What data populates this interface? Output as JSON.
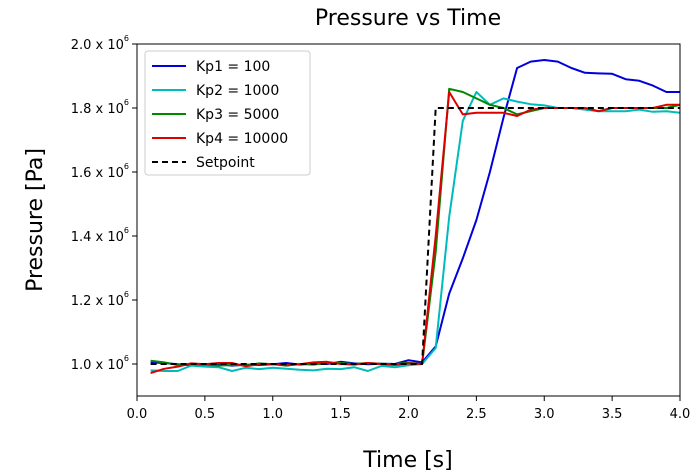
{
  "chart_data": {
    "type": "line",
    "title": "Pressure vs Time",
    "xlabel": "Time [s]",
    "ylabel": "Pressure [Pa]",
    "xlim": [
      0.0,
      4.0
    ],
    "ylim": [
      900000,
      2000000
    ],
    "x_ticks": [
      0.0,
      0.5,
      1.0,
      1.5,
      2.0,
      2.5,
      3.0,
      3.5,
      4.0
    ],
    "x_tick_labels": [
      "0.0",
      "0.5",
      "1.0",
      "1.5",
      "2.0",
      "2.5",
      "3.0",
      "3.5",
      "4.0"
    ],
    "y_ticks": [
      1000000,
      1200000,
      1400000,
      1600000,
      1800000,
      2000000
    ],
    "y_tick_labels": [
      {
        "base": "1.0 x 10",
        "exp": "6"
      },
      {
        "base": "1.2 x 10",
        "exp": "6"
      },
      {
        "base": "1.4 x 10",
        "exp": "6"
      },
      {
        "base": "1.6 x 10",
        "exp": "6"
      },
      {
        "base": "1.8 x 10",
        "exp": "6"
      },
      {
        "base": "2.0 x 10",
        "exp": "6"
      }
    ],
    "legend_position": "top-left",
    "grid": false,
    "series": [
      {
        "name": "Kp1 = 100",
        "color": "#0000dd",
        "style": "solid",
        "x": [
          0.1,
          0.2,
          0.3,
          0.4,
          0.5,
          0.6,
          0.7,
          0.8,
          0.9,
          1.0,
          1.1,
          1.2,
          1.3,
          1.4,
          1.5,
          1.6,
          1.7,
          1.8,
          1.9,
          2.0,
          2.1,
          2.2,
          2.3,
          2.4,
          2.5,
          2.6,
          2.7,
          2.8,
          2.9,
          3.0,
          3.1,
          3.2,
          3.3,
          3.4,
          3.5,
          3.6,
          3.7,
          3.8,
          3.9,
          4.0
        ],
        "values": [
          1005000,
          1003000,
          999000,
          996000,
          1000000,
          999000,
          995000,
          998000,
          997000,
          999000,
          1003000,
          998000,
          1002000,
          1000000,
          1007000,
          1002000,
          999000,
          1001000,
          1000000,
          1012000,
          1005000,
          1055000,
          1220000,
          1330000,
          1450000,
          1600000,
          1770000,
          1925000,
          1945000,
          1950000,
          1945000,
          1925000,
          1910000,
          1908000,
          1907000,
          1890000,
          1885000,
          1870000,
          1850000,
          1850000
        ]
      },
      {
        "name": "Kp2 = 1000",
        "color": "#00bbbb",
        "style": "solid",
        "x": [
          0.1,
          0.2,
          0.3,
          0.4,
          0.5,
          0.6,
          0.7,
          0.8,
          0.9,
          1.0,
          1.1,
          1.2,
          1.3,
          1.4,
          1.5,
          1.6,
          1.7,
          1.8,
          1.9,
          2.0,
          2.1,
          2.2,
          2.3,
          2.4,
          2.5,
          2.6,
          2.7,
          2.8,
          2.9,
          3.0,
          3.1,
          3.2,
          3.3,
          3.4,
          3.5,
          3.6,
          3.7,
          3.8,
          3.9,
          4.0
        ],
        "values": [
          980000,
          978000,
          978000,
          995000,
          992000,
          990000,
          978000,
          988000,
          984000,
          988000,
          985000,
          982000,
          980000,
          985000,
          984000,
          990000,
          978000,
          994000,
          990000,
          996000,
          1000000,
          1050000,
          1460000,
          1760000,
          1850000,
          1810000,
          1830000,
          1820000,
          1812000,
          1808000,
          1800000,
          1800000,
          1795000,
          1790000,
          1790000,
          1790000,
          1795000,
          1788000,
          1790000,
          1785000
        ]
      },
      {
        "name": "Kp3 = 5000",
        "color": "#008800",
        "style": "solid",
        "x": [
          0.1,
          0.2,
          0.3,
          0.4,
          0.5,
          0.6,
          0.7,
          0.8,
          0.9,
          1.0,
          1.1,
          1.2,
          1.3,
          1.4,
          1.5,
          1.6,
          1.7,
          1.8,
          1.9,
          2.0,
          2.1,
          2.2,
          2.3,
          2.4,
          2.5,
          2.6,
          2.7,
          2.8,
          2.9,
          3.0,
          3.1,
          3.2,
          3.3,
          3.4,
          3.5,
          3.6,
          3.7,
          3.8,
          3.9,
          4.0
        ],
        "values": [
          1010000,
          1005000,
          997000,
          1000000,
          998000,
          995000,
          997000,
          996000,
          1002000,
          999000,
          995000,
          1000000,
          998000,
          1004000,
          1003000,
          1000000,
          1003000,
          1001000,
          1000000,
          1004000,
          1000000,
          1350000,
          1860000,
          1850000,
          1830000,
          1810000,
          1800000,
          1780000,
          1790000,
          1800000,
          1800000,
          1800000,
          1800000,
          1790000,
          1800000,
          1800000,
          1800000,
          1800000,
          1800000,
          1810000
        ]
      },
      {
        "name": "Kp4 = 10000",
        "color": "#dd0000",
        "style": "solid",
        "x": [
          0.1,
          0.2,
          0.3,
          0.4,
          0.5,
          0.6,
          0.7,
          0.8,
          0.9,
          1.0,
          1.1,
          1.2,
          1.3,
          1.4,
          1.5,
          1.6,
          1.7,
          1.8,
          1.9,
          2.0,
          2.1,
          2.2,
          2.3,
          2.4,
          2.5,
          2.6,
          2.7,
          2.8,
          2.9,
          3.0,
          3.1,
          3.2,
          3.3,
          3.4,
          3.5,
          3.6,
          3.7,
          3.8,
          3.9,
          4.0
        ],
        "values": [
          972000,
          985000,
          992000,
          1002000,
          999000,
          1003000,
          1003000,
          993000,
          999000,
          1000000,
          996000,
          999000,
          1005000,
          1007000,
          1000000,
          998000,
          1003000,
          1000000,
          997000,
          1002000,
          1000000,
          1400000,
          1850000,
          1780000,
          1785000,
          1785000,
          1785000,
          1775000,
          1795000,
          1800000,
          1800000,
          1800000,
          1800000,
          1790000,
          1800000,
          1800000,
          1800000,
          1800000,
          1810000,
          1810000
        ]
      },
      {
        "name": "Setpoint",
        "color": "#000000",
        "style": "dashed",
        "x": [
          0.1,
          2.1,
          2.2,
          4.0
        ],
        "values": [
          1000000,
          1000000,
          1800000,
          1800000
        ]
      }
    ]
  }
}
